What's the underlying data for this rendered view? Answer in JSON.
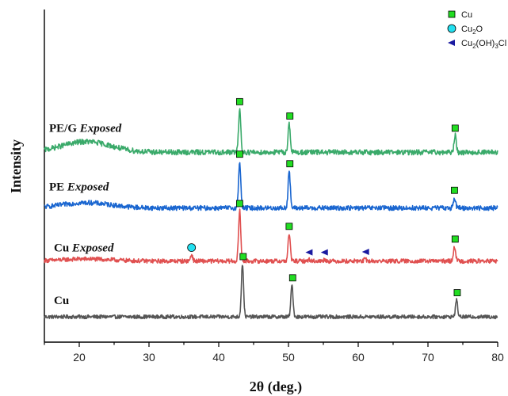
{
  "chart_data": {
    "type": "line",
    "xlabel": "2θ (deg.)",
    "ylabel": "Intensity",
    "xlim": [
      15,
      80
    ],
    "xticks": [
      20,
      30,
      40,
      50,
      60,
      70,
      80
    ],
    "grid": false,
    "legend_position": "top-right",
    "legend": [
      {
        "name": "Cu",
        "marker": "square",
        "color": "#22dd22"
      },
      {
        "name_parts": [
          "Cu",
          "2",
          "O"
        ],
        "name": "Cu2O",
        "marker": "circle",
        "color": "#22e0f0"
      },
      {
        "name_parts": [
          "Cu",
          "2",
          "(OH)",
          "3",
          "Cl"
        ],
        "name": "Cu2(OH)3Cl",
        "marker": "triangle-left",
        "color": "#1a1aa0"
      }
    ],
    "series": [
      {
        "name_main": "Cu",
        "name_italic": "",
        "color": "#555555",
        "baseline": 0.0,
        "noise": 0.035,
        "hump": 0.0,
        "peaks": [
          {
            "x": 43.4,
            "h": 1.0
          },
          {
            "x": 50.5,
            "h": 0.6
          },
          {
            "x": 74.1,
            "h": 0.32
          }
        ]
      },
      {
        "name_main": "Cu ",
        "name_italic": "Exposed",
        "color": "#e05050",
        "baseline": 1.05,
        "noise": 0.04,
        "hump": 0.04,
        "peaks": [
          {
            "x": 36.1,
            "h": 0.12
          },
          {
            "x": 43.0,
            "h": 0.95
          },
          {
            "x": 50.1,
            "h": 0.52
          },
          {
            "x": 53.0,
            "h": 0.03
          },
          {
            "x": 55.2,
            "h": 0.03
          },
          {
            "x": 61.0,
            "h": 0.04
          },
          {
            "x": 73.8,
            "h": 0.28
          }
        ]
      },
      {
        "name_main": "PE ",
        "name_italic": "Exposed",
        "color": "#1a66d0",
        "baseline": 2.05,
        "noise": 0.045,
        "hump": 0.1,
        "peaks": [
          {
            "x": 43.0,
            "h": 0.88
          },
          {
            "x": 50.1,
            "h": 0.7
          },
          {
            "x": 73.8,
            "h": 0.2
          }
        ]
      },
      {
        "name_main": "PE/G ",
        "name_italic": "Exposed",
        "color": "#3aaa6a",
        "baseline": 3.1,
        "noise": 0.05,
        "hump": 0.2,
        "peaks": [
          {
            "x": 43.0,
            "h": 0.82
          },
          {
            "x": 50.1,
            "h": 0.55
          },
          {
            "x": 73.9,
            "h": 0.32
          }
        ]
      }
    ],
    "markers": [
      {
        "type": "square",
        "x": 43.5,
        "series": 0
      },
      {
        "type": "square",
        "x": 50.6,
        "series": 0
      },
      {
        "type": "square",
        "x": 74.2,
        "series": 0
      },
      {
        "type": "circle",
        "x": 36.1,
        "series": 1
      },
      {
        "type": "square",
        "x": 43.0,
        "series": 1
      },
      {
        "type": "square",
        "x": 50.1,
        "series": 1
      },
      {
        "type": "triangle-left",
        "x": 53.0,
        "series": 1
      },
      {
        "type": "triangle-left",
        "x": 55.2,
        "series": 1
      },
      {
        "type": "triangle-left",
        "x": 61.1,
        "series": 1
      },
      {
        "type": "square",
        "x": 73.9,
        "series": 1
      },
      {
        "type": "square",
        "x": 43.0,
        "series": 2
      },
      {
        "type": "square",
        "x": 50.2,
        "series": 2
      },
      {
        "type": "square",
        "x": 73.8,
        "series": 2
      },
      {
        "type": "square",
        "x": 43.0,
        "series": 3
      },
      {
        "type": "square",
        "x": 50.2,
        "series": 3
      },
      {
        "type": "square",
        "x": 73.9,
        "series": 3
      }
    ]
  }
}
